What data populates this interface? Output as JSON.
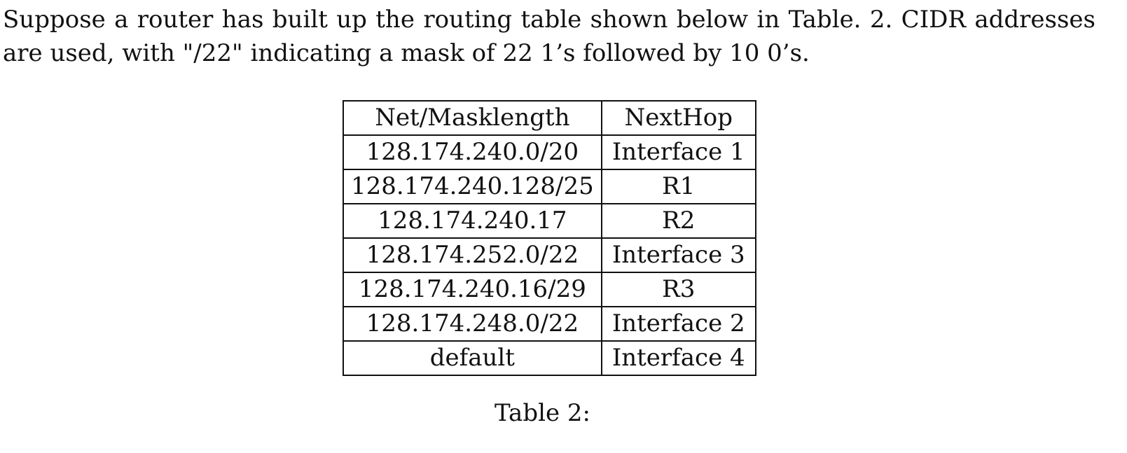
{
  "paragraph": {
    "line1": "Suppose a router has built up the routing table shown below in Table. 2. CIDR addresses",
    "line2": "are used, with \"/22\" indicating a mask of 22 1’s followed by 10 0’s."
  },
  "table": {
    "headers": {
      "net": "Net/Masklength",
      "nexthop": "NextHop"
    },
    "rows": [
      {
        "net": "128.174.240.0/20",
        "nexthop": "Interface 1"
      },
      {
        "net": "128.174.240.128/25",
        "nexthop": "R1"
      },
      {
        "net": "128.174.240.17",
        "nexthop": "R2"
      },
      {
        "net": "128.174.252.0/22",
        "nexthop": "Interface 3"
      },
      {
        "net": "128.174.240.16/29",
        "nexthop": "R3"
      },
      {
        "net": "128.174.248.0/22",
        "nexthop": "Interface 2"
      },
      {
        "net": "default",
        "nexthop": "Interface 4"
      }
    ],
    "caption": "Table 2:"
  }
}
